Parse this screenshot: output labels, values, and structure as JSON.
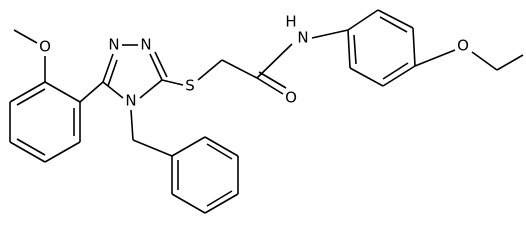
{
  "atoms": [
    {
      "label": "O"
    },
    {
      "label": "N"
    },
    {
      "label": "N"
    },
    {
      "label": "N"
    },
    {
      "label": "S"
    },
    {
      "label": "O"
    },
    {
      "label": "H"
    },
    {
      "label": "N"
    },
    {
      "label": "O"
    }
  ]
}
